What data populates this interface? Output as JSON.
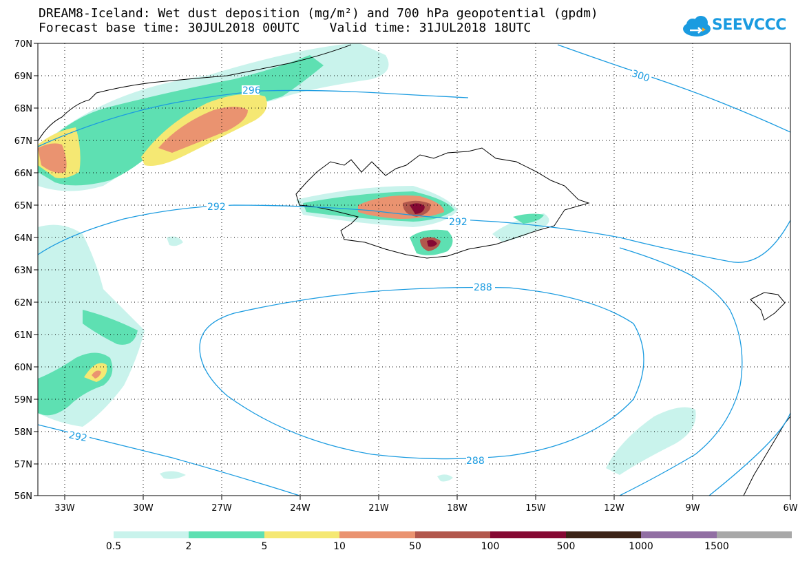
{
  "header": {
    "title_line1": "DREAM8-Iceland: Wet dust deposition (mg/m²) and 700 hPa geopotential (gpdm)",
    "forecast_label": "Forecast base time: 30JUL2018 00UTC",
    "valid_label": "Valid time: 31JUL2018 18UTC"
  },
  "logo": {
    "text": "SEEVCCC",
    "icon": "cloud-icon",
    "color": "#1a9be0"
  },
  "map": {
    "lat_labels": [
      "70N",
      "69N",
      "68N",
      "67N",
      "66N",
      "65N",
      "64N",
      "63N",
      "62N",
      "61N",
      "60N",
      "59N",
      "58N",
      "57N",
      "56N"
    ],
    "lon_labels": [
      "33W",
      "30W",
      "27W",
      "24W",
      "21W",
      "18W",
      "15W",
      "12W",
      "9W",
      "6W"
    ],
    "contour_color": "#1a9be0",
    "contour_labels": [
      "296",
      "300",
      "292",
      "292",
      "288",
      "288",
      "292"
    ]
  },
  "legend": {
    "colors": [
      "#c9f3ec",
      "#5ee0b2",
      "#f5e873",
      "#ea9370",
      "#b2574c",
      "#850833",
      "#3c2417",
      "#916fa3",
      "#a8a8a8"
    ],
    "labels": [
      "0.5",
      "2",
      "5",
      "10",
      "50",
      "100",
      "500",
      "1000",
      "1500"
    ]
  }
}
